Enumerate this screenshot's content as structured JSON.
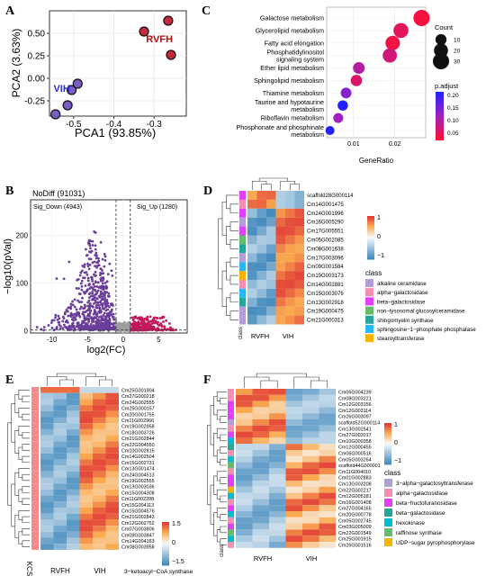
{
  "panels": {
    "A": {
      "label": "A",
      "chart_data": {
        "type": "scatter",
        "xlabel": "PCA1 (93.85%)",
        "ylabel": "PCA2 (3.63%)",
        "xticks": [
          "-0.5",
          "-0.4",
          "-0.3"
        ],
        "yticks": [
          "0.50",
          "0.25",
          "0.00",
          "-0.25"
        ],
        "xlim": [
          -0.56,
          -0.22
        ],
        "ylim": [
          -0.42,
          0.75
        ],
        "groups": [
          {
            "name": "VIH",
            "color": "#7b5cc4",
            "points": [
              [
                -0.545,
                -0.4
              ],
              [
                -0.515,
                -0.3
              ],
              [
                -0.505,
                -0.13
              ],
              [
                -0.49,
                -0.06
              ]
            ]
          },
          {
            "name": "RVFH",
            "color": "#c62a3a",
            "points": [
              [
                -0.325,
                0.52
              ],
              [
                -0.265,
                0.64
              ],
              [
                -0.258,
                0.26
              ]
            ]
          }
        ],
        "group_labels": [
          {
            "text": "VIH",
            "color": "#2a2ad0"
          },
          {
            "text": "RVFH",
            "color": "#b01010"
          }
        ]
      }
    },
    "B": {
      "label": "B",
      "chart_data": {
        "type": "scatter",
        "xlabel": "log2(FC)",
        "ylabel": "−log10(pVal)",
        "xticks": [
          "-10",
          "-5",
          "0",
          "5"
        ],
        "yticks": [
          "0",
          "100",
          "200"
        ],
        "xlim": [
          -13,
          9
        ],
        "ylim": [
          -5,
          275
        ],
        "annotations": {
          "nodiff": "NoDiff (91031)",
          "down": "Sig_Down (4943)",
          "up": "Sig_Up (1280)"
        },
        "cutoffs_x": [
          -1,
          1
        ],
        "cutoff_y": 1.3,
        "colors": {
          "down": "#6a3d9a",
          "up": "#c2185b",
          "nodiff": "#9e9e9e"
        }
      }
    },
    "C": {
      "label": "C",
      "chart_data": {
        "type": "scatter",
        "xlabel": "GeneRatio",
        "xticks": [
          "0.01",
          "0.02"
        ],
        "xlim": [
          0.0035,
          0.0275
        ],
        "categories": [
          "Galactose metabolism",
          "Glycerolipid metabolism",
          "Fatty acid elongation",
          "Phosphatidylinositol\nsignaling system",
          "Ether lipid metabolism",
          "Sphingolipid metabolism",
          "Thiamine metabolism",
          "Taurine and hypotaurine\nmetabolism",
          "Riboflavin metabolism",
          "Phosphonate and phosphinate\nmetabolism"
        ],
        "gene_ratio": [
          0.0265,
          0.0215,
          0.0195,
          0.0188,
          0.0113,
          0.0107,
          0.0082,
          0.0074,
          0.0063,
          0.0043
        ],
        "count": [
          30,
          24,
          22,
          21,
          12,
          11,
          9,
          8,
          7,
          5
        ],
        "p_adjust": [
          0.01,
          0.03,
          0.015,
          0.05,
          0.08,
          0.04,
          0.12,
          0.2,
          0.1,
          0.2
        ],
        "legend_count": {
          "title": "Count",
          "values": [
            "10",
            "20",
            "30"
          ]
        },
        "legend_padj": {
          "title": "p.adjust",
          "ticks": [
            "0.20",
            "0.15",
            "0.10",
            "0.05"
          ]
        }
      }
    },
    "D": {
      "label": "D",
      "chart_data": {
        "type": "heatmap",
        "rows": [
          "scaffold28G000114",
          "Cm14G001475",
          "Cm24G001996",
          "Cm16G005290",
          "Cm17G005551",
          "Cm05G002085",
          "Cm08G001638",
          "Cm17G003096",
          "Cm09G001584",
          "Cm19G003173",
          "Cm14G002881",
          "Cm15G003076",
          "Cm13G002918",
          "Cm19G000475",
          "Cm21G000313"
        ],
        "col_groups": [
          "RVFH",
          "VIH"
        ],
        "class_label": "class",
        "class_title": "class",
        "scale": {
          "ticks": [
            "1",
            "0",
            "−1"
          ]
        },
        "classes": [
          {
            "name": "alkaline ceramidase",
            "color": "#b39ddb"
          },
          {
            "name": "alpha−galactosidase",
            "color": "#f48fb1"
          },
          {
            "name": "beta−galactosidase",
            "color": "#e040fb"
          },
          {
            "name": "non−lysosomal glucosylceramidase",
            "color": "#66bb6a"
          },
          {
            "name": "shingomyelin synthase",
            "color": "#26a69a"
          },
          {
            "name": "sphingosine−1−phosphate phosphatase",
            "color": "#29b6f6"
          },
          {
            "name": "stearoyltransferase",
            "color": "#f4b400"
          }
        ]
      }
    },
    "E": {
      "label": "E",
      "chart_data": {
        "type": "heatmap",
        "rows": [
          "Cm25G001904",
          "Cm27G000218",
          "Cm24G002555",
          "Cm25G000157",
          "Cm20G001755",
          "Cm11G002966",
          "Cm19G002958",
          "Cm18G003726",
          "Cm21G002844",
          "Cm22G004550",
          "Cm10G002815",
          "Cm14G002504",
          "Cm15G002731",
          "Cm13G001474",
          "Cm24G004513",
          "Cm19G002555",
          "Cm13G003036",
          "Cm15G004308",
          "Cm11G002208",
          "Cm15G004113",
          "Cm15G004576",
          "Cm21G002843",
          "Cm12G002752",
          "Cm07G003806",
          "Cm09G003847",
          "Cm14G004163",
          "Cm08G003958"
        ],
        "col_groups": [
          "RVFH",
          "VIH"
        ],
        "side_label": "KCS",
        "class_name": "3−ketoacyl−CoA synthase",
        "scale": {
          "ticks": [
            "1.5",
            "0",
            "−1.5"
          ]
        }
      }
    },
    "F": {
      "label": "F",
      "chart_data": {
        "type": "heatmap",
        "rows": [
          "Cm06G004239",
          "Cm08G003221",
          "Cm12G003156",
          "Cm12G003114",
          "Cm26G003097",
          "scaffold52G000114",
          "Cm13G002541",
          "Cm27G002017",
          "Cm10G000358",
          "Cm12G000455",
          "Cm06G000516",
          "Cm05G003264",
          "scaffold44G000001",
          "Cm11G004010",
          "Cm01G002883",
          "Cm13G003208",
          "Cm22G002217",
          "Cm12G005181",
          "Cm16G001408",
          "Cm27G004165",
          "Cm20G000778",
          "Cm05G002745",
          "Cm03G005009",
          "Cm22G001549",
          "Cm25G001915",
          "Cm26G001516"
        ],
        "col_groups": [
          "RVFH",
          "VIH"
        ],
        "class_label": "class",
        "class_title": "class",
        "scale": {
          "ticks": [
            "1",
            "0",
            "−1"
          ]
        },
        "classes": [
          {
            "name": "3−alpha−galactosyltransferase",
            "color": "#b39ddb"
          },
          {
            "name": "alpha−galactosidase",
            "color": "#f48fb1"
          },
          {
            "name": "beta−fructofuranosidase",
            "color": "#e040fb"
          },
          {
            "name": "beta−galactosidase",
            "color": "#26a69a"
          },
          {
            "name": "hexokinase",
            "color": "#00bcd4"
          },
          {
            "name": "raffinose synthase",
            "color": "#66bb6a"
          },
          {
            "name": "UDP−sugar pyrophosphorylase",
            "color": "#f4b400"
          }
        ]
      }
    }
  }
}
